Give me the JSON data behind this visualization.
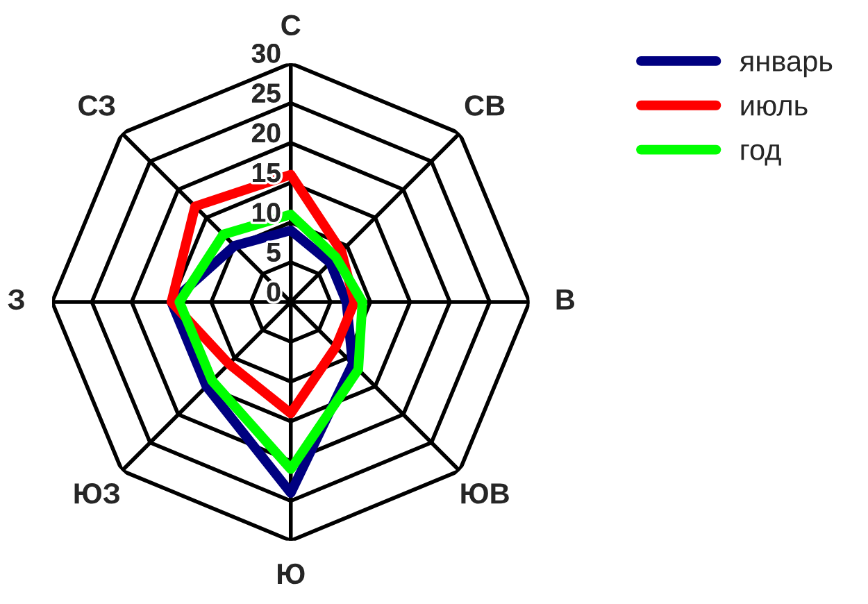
{
  "chart_data": {
    "type": "radar",
    "categories": [
      "С",
      "СВ",
      "В",
      "ЮВ",
      "Ю",
      "ЮЗ",
      "З",
      "СЗ"
    ],
    "ylim": [
      0,
      30
    ],
    "yticks": [
      0,
      5,
      10,
      15,
      20,
      25,
      30
    ],
    "grid": true,
    "legend": "top right",
    "series": [
      {
        "name": "январь",
        "color": "#000080",
        "values": [
          9,
          7,
          7,
          11,
          24,
          15,
          15,
          10
        ]
      },
      {
        "name": "июль",
        "color": "#ff0000",
        "values": [
          16,
          9,
          8,
          8,
          14,
          11,
          15,
          17
        ]
      },
      {
        "name": "год",
        "color": "#00ff00",
        "values": [
          11,
          8,
          9,
          12,
          21,
          14,
          14,
          12
        ]
      }
    ]
  }
}
